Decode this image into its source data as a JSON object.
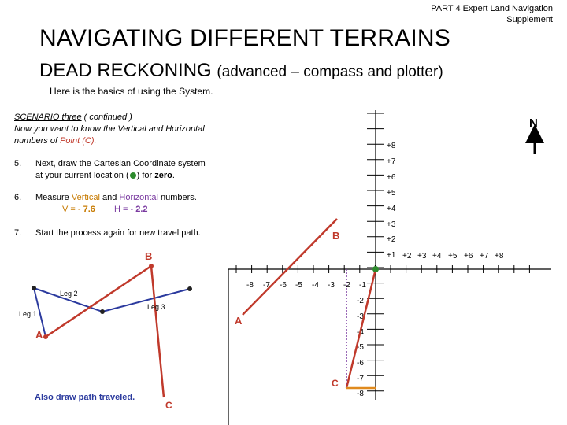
{
  "header": {
    "line1": "PART 4  Expert  Land Navigation",
    "line2": "Supplement"
  },
  "title": "NAVIGATING DIFFERENT TERRAINS",
  "subtitle": {
    "main": "DEAD RECKONING",
    "paren": "(advanced – compass and plotter)"
  },
  "intro": "Here is the basics of using the System.",
  "scenario": {
    "heading": "SCENARIO three",
    "heading_rest": " ( continued )",
    "line2": "Now you want to know the Vertical and Horizontal",
    "line3_a": "numbers of  ",
    "point_c": "Point (C)",
    "line3_b": "."
  },
  "steps": [
    {
      "num": "5.",
      "text_a": "Next, draw the Cartesian Coordinate system",
      "text_b": "at your current location (",
      "text_c": ") for ",
      "bold": "zero",
      "text_d": "."
    },
    {
      "num": "6.",
      "text_a": "Measure ",
      "vertical": "Vertical",
      "and": " and ",
      "horizontal": "Horizontal",
      "rest": " numbers.",
      "v_label": "V = - ",
      "v_value": "7.6",
      "h_label": "H = - ",
      "h_value": "2.2"
    },
    {
      "num": "7.",
      "text": "Start the process again for new travel path."
    }
  ],
  "diagram": {
    "north": "N",
    "y_pos_ticks": [
      "+8",
      "+7",
      "+6",
      "+5",
      "+4",
      "+3",
      "+2",
      "+1"
    ],
    "x_pos_ticks": [
      "+2",
      "+3",
      "+4",
      "+5",
      "+6",
      "+7",
      "+8"
    ],
    "x_neg_ticks": [
      "-8",
      "-7",
      "-6",
      "-5",
      "-4",
      "-3",
      "-2",
      "-1"
    ],
    "y_neg_ticks": [
      "-2",
      "-3",
      "-4",
      "-5",
      "-6",
      "-7",
      "-8"
    ],
    "labels": {
      "b_right": "B",
      "b_left": "B",
      "a_right": "A",
      "a_left": "A",
      "c_right": "C",
      "c_left": "C",
      "leg1": "Leg 1",
      "leg2": "Leg 2",
      "leg3": "Leg 3",
      "also": "Also draw path traveled."
    },
    "colors": {
      "path": "#c0392b",
      "legs": "#2b3a9e",
      "origin": "#2e8b2e",
      "vertical_dotted": "#7a3aa0",
      "horizontal": "#e08a1e"
    }
  }
}
